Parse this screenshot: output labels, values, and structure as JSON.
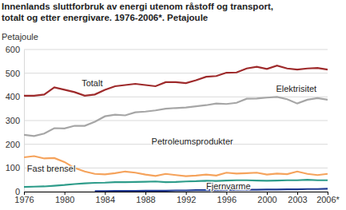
{
  "chart_data": {
    "type": "line",
    "title": [
      "Innenlands sluttforbruk av energi utenom råstoff og transport,",
      "totalt og etter energivare. 1976-2006*. Petajoule"
    ],
    "y_label": "Petajoule",
    "x": [
      1976,
      1977,
      1978,
      1979,
      1980,
      1981,
      1982,
      1983,
      1984,
      1985,
      1986,
      1987,
      1988,
      1989,
      1990,
      1991,
      1992,
      1993,
      1994,
      1995,
      1996,
      1997,
      1998,
      1999,
      2000,
      2001,
      2002,
      2003,
      2004,
      2005,
      2006
    ],
    "series": [
      {
        "name": "Totalt",
        "color": "#9e2a2b",
        "values": [
          405,
          405,
          410,
          440,
          430,
          420,
          405,
          410,
          430,
          445,
          450,
          455,
          450,
          445,
          462,
          462,
          458,
          470,
          485,
          488,
          502,
          503,
          520,
          527,
          518,
          532,
          520,
          515,
          520,
          522,
          515
        ]
      },
      {
        "name": "Elektrisitet",
        "color": "#a6a6a6",
        "values": [
          240,
          235,
          245,
          268,
          267,
          278,
          278,
          295,
          318,
          325,
          322,
          335,
          338,
          343,
          350,
          353,
          355,
          360,
          365,
          372,
          370,
          375,
          392,
          393,
          397,
          400,
          390,
          372,
          388,
          395,
          388
        ]
      },
      {
        "name": "Petroleumsprodukter",
        "color": "#f5a35c",
        "values": [
          145,
          150,
          140,
          142,
          125,
          100,
          85,
          75,
          73,
          78,
          85,
          80,
          72,
          66,
          75,
          70,
          65,
          68,
          72,
          68,
          80,
          76,
          78,
          80,
          72,
          76,
          74,
          85,
          75,
          70,
          75
        ]
      },
      {
        "name": "Fast brensel",
        "color": "#2e9c8a",
        "values": [
          20,
          21,
          22,
          25,
          28,
          32,
          35,
          37,
          38,
          40,
          40,
          41,
          42,
          43,
          40,
          41,
          43,
          44,
          46,
          45,
          47,
          48,
          48,
          47,
          46,
          47,
          48,
          48,
          50,
          48,
          48
        ]
      },
      {
        "name": "Fjernvarme",
        "color": "#1f3a93",
        "values": [
          null,
          null,
          null,
          null,
          null,
          null,
          null,
          2,
          2,
          3,
          3,
          3,
          4,
          4,
          4,
          5,
          5,
          6,
          6,
          6,
          7,
          7,
          8,
          8,
          9,
          9,
          10,
          10,
          11,
          11,
          12
        ]
      }
    ],
    "xlim": [
      1976,
      2006
    ],
    "xticks": [
      1976,
      1980,
      1984,
      1988,
      1992,
      1996,
      2000,
      2003,
      {
        "value": 2006,
        "label": "2006*"
      }
    ],
    "ylim": [
      0,
      600
    ],
    "yticks": [
      0,
      100,
      200,
      300,
      400,
      500,
      600
    ],
    "grid": true
  }
}
